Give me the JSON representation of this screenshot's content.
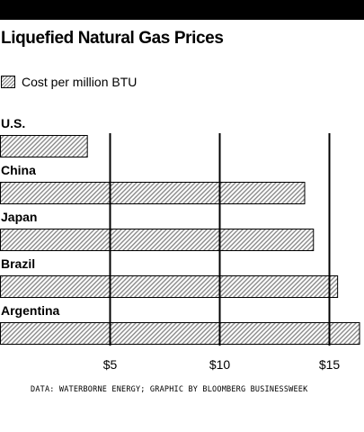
{
  "title": "Liquefied Natural Gas Prices",
  "legend": {
    "label": "Cost per million BTU"
  },
  "source": "DATA: WATERBORNE ENERGY; GRAPHIC BY BLOOMBERG BUSINESSWEEK",
  "colors": {
    "background": "#ffffff",
    "ink": "#000000",
    "hatch": "#888888"
  },
  "chart_data": {
    "type": "bar",
    "orientation": "horizontal",
    "categories": [
      "U.S.",
      "China",
      "Japan",
      "Brazil",
      "Argentina"
    ],
    "values": [
      4.0,
      13.9,
      14.3,
      15.4,
      16.4
    ],
    "xlim": [
      0,
      16.5
    ],
    "xticks": [
      5,
      10,
      15
    ],
    "xtick_labels": [
      "$5",
      "$10",
      "$15"
    ],
    "gridlines": "vertical",
    "legend_position": "top-left",
    "bar_fill": "diagonal-hatch"
  }
}
